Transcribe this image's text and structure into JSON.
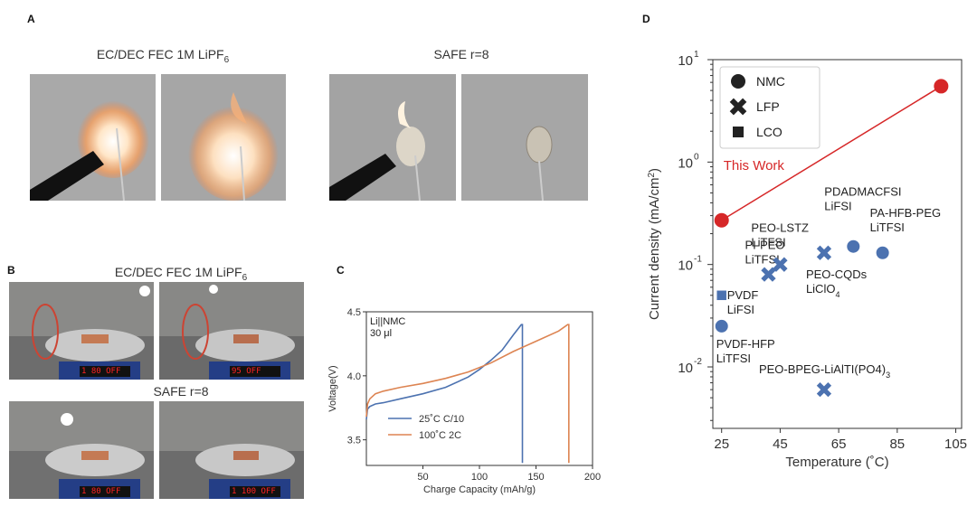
{
  "panelA": {
    "letter": "A",
    "caption_left": "EC/DEC FEC 1M LiPF",
    "caption_left_sub": "6",
    "caption_right": "SAFE r=8"
  },
  "panelB": {
    "letter": "B",
    "caption_top": "EC/DEC FEC 1M LiPF",
    "caption_top_sub": "6",
    "caption_bottom": "SAFE r=8",
    "displays": [
      "1 80",
      "95",
      "1 80",
      "1 100"
    ],
    "display_off": "OFF"
  },
  "panelC": {
    "letter": "C"
  },
  "panelD": {
    "letter": "D"
  },
  "chart_data": [
    {
      "type": "line",
      "panel": "C",
      "xlabel": "Charge Capacity (mAh/g)",
      "ylabel": "Voltage(V)",
      "xlim": [
        0,
        200
      ],
      "ylim": [
        3.3,
        4.5
      ],
      "xticks": [
        50,
        100,
        150,
        200
      ],
      "yticks": [
        3.5,
        4.0,
        4.5
      ],
      "annotation_line1": "Li||NMC",
      "annotation_line2": "30 μl",
      "legend_position": "bottom-left",
      "series": [
        {
          "name": "25˚C C/10",
          "color": "#4c72b0",
          "x": [
            0,
            1,
            3,
            8,
            15,
            30,
            50,
            70,
            90,
            100,
            110,
            120,
            130,
            137,
            138,
            138
          ],
          "y": [
            3.66,
            3.74,
            3.76,
            3.78,
            3.79,
            3.82,
            3.86,
            3.91,
            3.99,
            4.05,
            4.12,
            4.2,
            4.32,
            4.4,
            4.4,
            3.32
          ]
        },
        {
          "name": "100˚C 2C",
          "color": "#dd8452",
          "x": [
            0,
            1,
            3,
            8,
            15,
            30,
            50,
            70,
            90,
            110,
            130,
            150,
            170,
            178,
            179,
            179
          ],
          "y": [
            3.68,
            3.78,
            3.82,
            3.86,
            3.88,
            3.91,
            3.94,
            3.98,
            4.03,
            4.1,
            4.19,
            4.27,
            4.35,
            4.4,
            4.4,
            3.32
          ]
        }
      ]
    },
    {
      "type": "scatter",
      "panel": "D",
      "xlabel": "Temperature (˚C)",
      "ylabel": "Current density (mA/cm",
      "ylabel_sup": "2",
      "ylabel_end": ")",
      "xlim": [
        22,
        107
      ],
      "ylim_log10": [
        -2.6,
        1.0
      ],
      "yscale": "log",
      "xticks": [
        25,
        45,
        65,
        85,
        105
      ],
      "yticks": [
        {
          "base": "10",
          "exp": "1",
          "log": 1
        },
        {
          "base": "10",
          "exp": "0",
          "log": 0
        },
        {
          "base": "10",
          "exp": "-1",
          "log": -1
        },
        {
          "base": "10",
          "exp": "-2",
          "log": -2
        }
      ],
      "legend_position": "top-left",
      "legend": [
        {
          "marker": "circle",
          "label": "NMC"
        },
        {
          "marker": "x",
          "label": "LFP"
        },
        {
          "marker": "square",
          "label": "LCO"
        }
      ],
      "highlight": {
        "label": "This Work",
        "color": "#d62728",
        "points": [
          {
            "x": 25,
            "y": 0.27
          },
          {
            "x": 100,
            "y": 5.5
          }
        ]
      },
      "points": [
        {
          "x": 25,
          "y": 0.025,
          "marker": "circle",
          "label": [
            "PVDF-HFP",
            "LiTFSI"
          ]
        },
        {
          "x": 25,
          "y": 0.05,
          "marker": "square",
          "label": [
            "PVDF",
            "LiFSI"
          ]
        },
        {
          "x": 41,
          "y": 0.08,
          "marker": "x",
          "label": [
            "PI-PEO",
            "LiTFSI"
          ]
        },
        {
          "x": 45,
          "y": 0.1,
          "marker": "x",
          "label": [
            "PEO-LSTZ",
            "LiTFSI"
          ]
        },
        {
          "x": 60,
          "y": 0.13,
          "marker": "x",
          "label": [
            "PEO-CQDs",
            "LiClO",
            "4"
          ]
        },
        {
          "x": 70,
          "y": 0.15,
          "marker": "circle",
          "label": [
            "PDADMACFSI",
            "LiFSI"
          ]
        },
        {
          "x": 80,
          "y": 0.13,
          "marker": "circle",
          "label": [
            "PA-HFB-PEG",
            "LiTFSI"
          ]
        },
        {
          "x": 60,
          "y": 0.006,
          "marker": "x",
          "label": [
            "PEO-BPEG-LiAlTI(PO4)",
            "3"
          ]
        }
      ],
      "point_color": "#4c72b0"
    }
  ]
}
